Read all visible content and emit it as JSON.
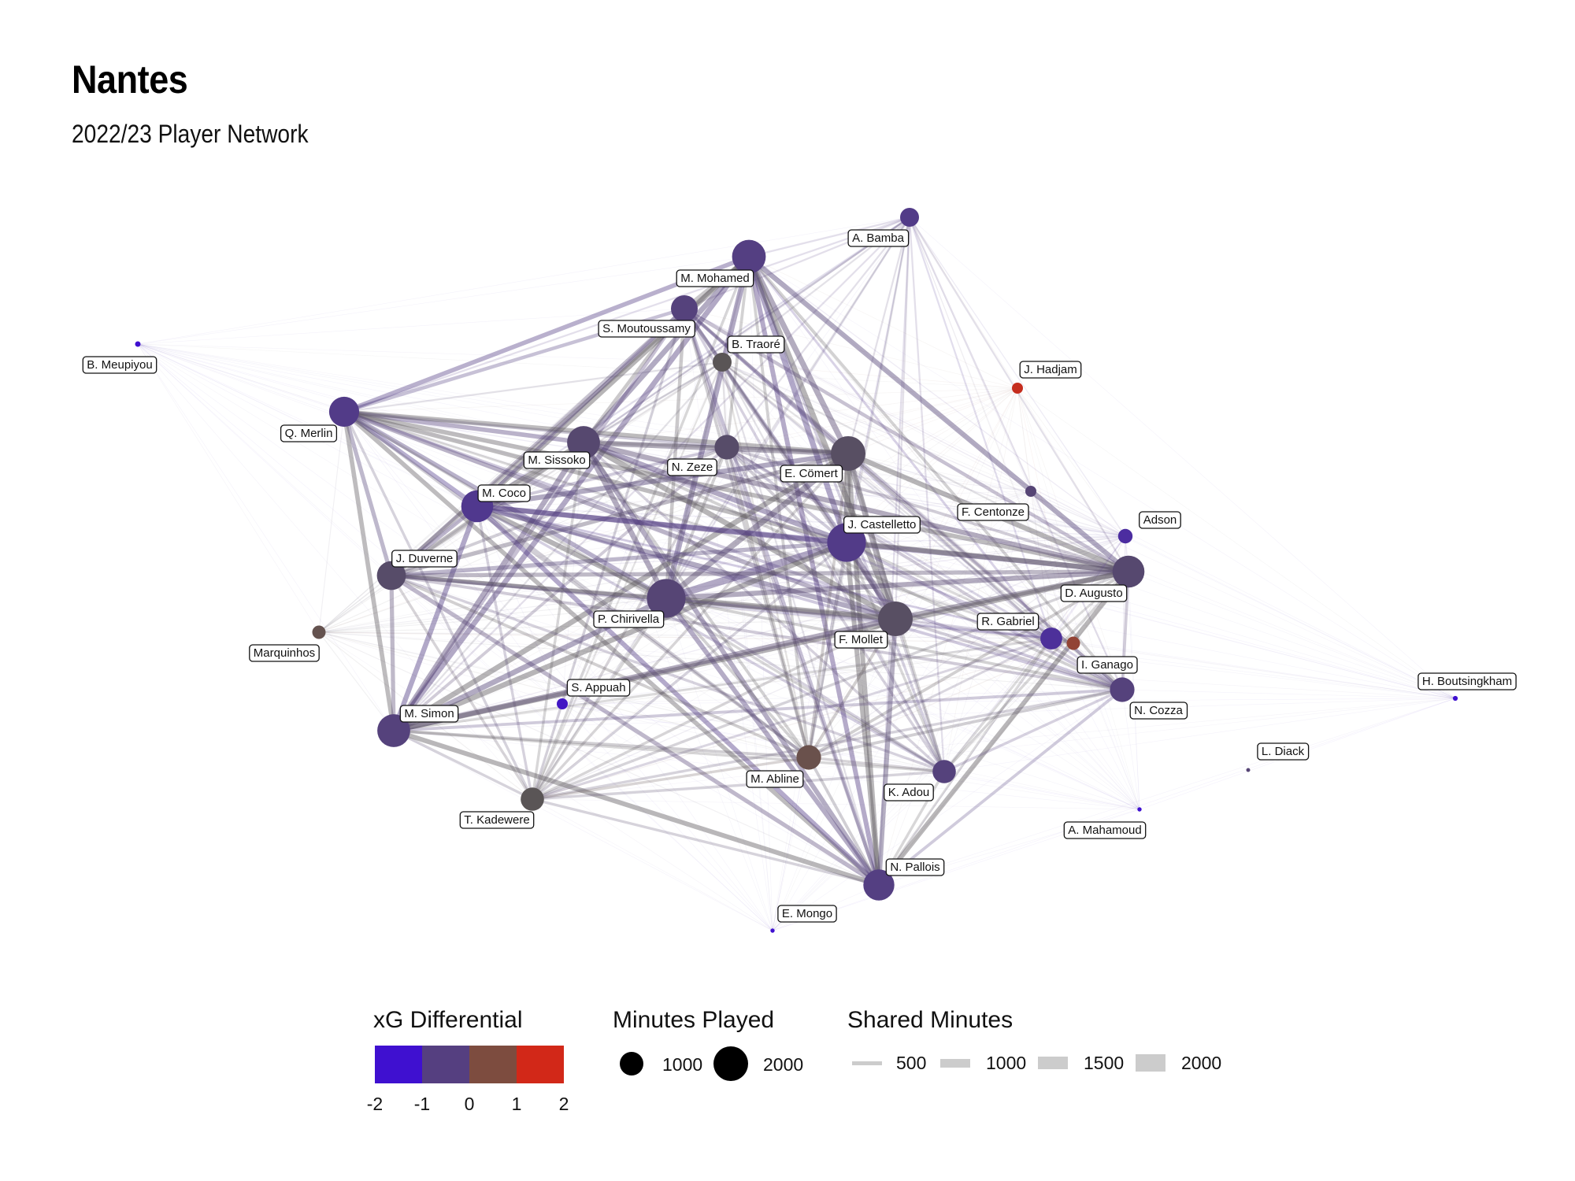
{
  "title": "Nantes",
  "subtitle": "2022/23 Player Network",
  "colors": {
    "xg_low": "#3f10d0",
    "xg_midlow": "#553f80",
    "xg_midhigh": "#7d4c3f",
    "xg_high": "#d22818",
    "label_bg": "#ffffff",
    "label_border": "#111111",
    "size_legend_dot": "#000000",
    "edge_legend": "#cccccc"
  },
  "chart_data": {
    "type": "network",
    "nodes": [
      {
        "name": "A. Bamba",
        "minutes": 600,
        "xg": -0.8
      },
      {
        "name": "M. Mohamed",
        "minutes": 1900,
        "xg": -0.7
      },
      {
        "name": "S. Moutoussamy",
        "minutes": 1200,
        "xg": -0.6
      },
      {
        "name": "B. Traoré",
        "minutes": 600,
        "xg": 0.0
      },
      {
        "name": "J. Hadjam",
        "minutes": 200,
        "xg": 1.8
      },
      {
        "name": "B. Meupiyou",
        "minutes": 50,
        "xg": -2.0
      },
      {
        "name": "Q. Merlin",
        "minutes": 1500,
        "xg": -0.8
      },
      {
        "name": "M. Sissoko",
        "minutes": 1800,
        "xg": -0.4
      },
      {
        "name": "N. Zeze",
        "minutes": 1000,
        "xg": -0.3
      },
      {
        "name": "E. Cömert",
        "minutes": 2000,
        "xg": -0.2
      },
      {
        "name": "F. Centonze",
        "minutes": 200,
        "xg": -0.5
      },
      {
        "name": "M. Coco",
        "minutes": 1700,
        "xg": -0.9
      },
      {
        "name": "J. Castelletto",
        "minutes": 2500,
        "xg": -0.8
      },
      {
        "name": "Adson",
        "minutes": 350,
        "xg": -1.2
      },
      {
        "name": "J. Duverne",
        "minutes": 1400,
        "xg": -0.3
      },
      {
        "name": "D. Augusto",
        "minutes": 1700,
        "xg": -0.4
      },
      {
        "name": "P. Chirivella",
        "minutes": 2500,
        "xg": -0.5
      },
      {
        "name": "F. Mollet",
        "minutes": 2000,
        "xg": -0.2
      },
      {
        "name": "R. Gabriel",
        "minutes": 800,
        "xg": -1.1
      },
      {
        "name": "I. Ganago",
        "minutes": 300,
        "xg": 1.0
      },
      {
        "name": "Marquinhos",
        "minutes": 300,
        "xg": 0.2
      },
      {
        "name": "H. Boutsingkham",
        "minutes": 40,
        "xg": -2.0
      },
      {
        "name": "S. Appuah",
        "minutes": 200,
        "xg": -1.8
      },
      {
        "name": "N. Cozza",
        "minutes": 1000,
        "xg": -0.6
      },
      {
        "name": "M. Simon",
        "minutes": 1800,
        "xg": -0.6
      },
      {
        "name": "L. Diack",
        "minutes": 10,
        "xg": -0.5
      },
      {
        "name": "M. Abline",
        "minutes": 1000,
        "xg": 0.3
      },
      {
        "name": "K. Adou",
        "minutes": 900,
        "xg": -0.6
      },
      {
        "name": "A. Mahamoud",
        "minutes": 30,
        "xg": -2.0
      },
      {
        "name": "T. Kadewere",
        "minutes": 900,
        "xg": 0.0
      },
      {
        "name": "N. Pallois",
        "minutes": 1600,
        "xg": -0.7
      },
      {
        "name": "E. Mongo",
        "minutes": 30,
        "xg": -2.0
      }
    ],
    "legend": {
      "xg": {
        "title": "xG Differential",
        "ticks": [
          "-2",
          "-1",
          "0",
          "1",
          "2"
        ]
      },
      "minutes": {
        "title": "Minutes Played",
        "values": [
          1000,
          2000
        ],
        "labels": [
          "1000",
          "2000"
        ]
      },
      "shared": {
        "title": "Shared Minutes",
        "values": [
          500,
          1000,
          1500,
          2000
        ],
        "labels": [
          "500",
          "1000",
          "1500",
          "2000"
        ]
      }
    }
  }
}
